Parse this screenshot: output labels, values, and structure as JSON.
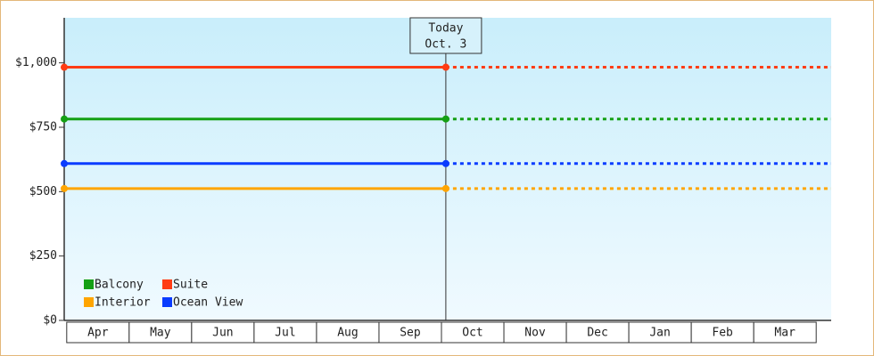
{
  "chart_data": {
    "type": "line",
    "categories": [
      "Apr",
      "May",
      "Jun",
      "Jul",
      "Aug",
      "Sep",
      "Oct",
      "Nov",
      "Dec",
      "Jan",
      "Feb",
      "Mar"
    ],
    "x": [
      -0.04,
      6.07
    ],
    "xlim": [
      -0.04,
      12.24
    ],
    "ylim": [
      0,
      1175
    ],
    "yticks": [
      {
        "value": 0,
        "label": "$0"
      },
      {
        "value": 250,
        "label": "$250"
      },
      {
        "value": 500,
        "label": "$500"
      },
      {
        "value": 750,
        "label": "$750"
      },
      {
        "value": 1000,
        "label": "$1,000"
      }
    ],
    "annotation": {
      "label": "Today",
      "date": "Oct. 3"
    },
    "series": [
      {
        "name": "Balcony",
        "color": "#14a014",
        "values": [
          782,
          782
        ]
      },
      {
        "name": "Suite",
        "color": "#ff3c14",
        "values": [
          983,
          983
        ]
      },
      {
        "name": "Interior",
        "color": "#ffa500",
        "values": [
          512,
          512
        ]
      },
      {
        "name": "Ocean View",
        "color": "#0a3cff",
        "values": [
          609,
          609
        ]
      }
    ]
  }
}
